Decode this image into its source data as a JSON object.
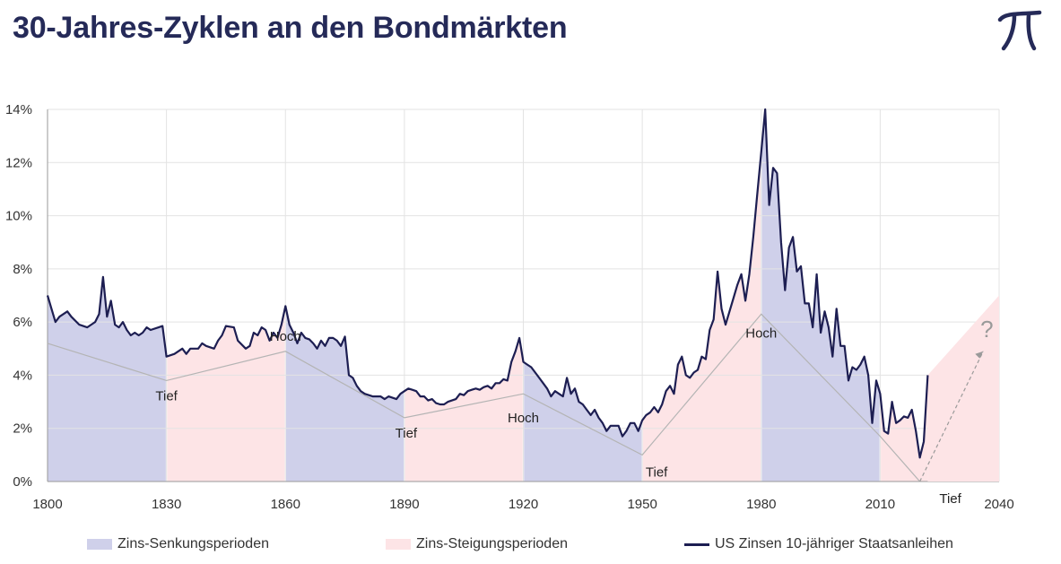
{
  "header": {
    "title": "30-Jahres-Zyklen an den Bondmärkten",
    "logo_icon": "pi-icon"
  },
  "colors": {
    "down_fill": "#cfd0ea",
    "up_fill": "#fde4e6",
    "line": "#1d1e52",
    "trend": "#b4b4b4",
    "grid": "#e3e3e3",
    "forecast_arrow": "#9a9a9a",
    "title": "#252a58"
  },
  "legend": {
    "down": "Zins-Senkungsperioden",
    "up": "Zins-Steigungsperioden",
    "line": "US Zinsen 10-jähriger Staatsanleihen"
  },
  "chart_data": {
    "type": "line",
    "title": "30-Jahres-Zyklen an den Bondmärkten",
    "xlim": [
      1800,
      2040
    ],
    "ylim": [
      0,
      14
    ],
    "x_ticks": [
      "1800",
      "1830",
      "1860",
      "1890",
      "1920",
      "1950",
      "1980",
      "2010",
      "2040"
    ],
    "y_ticks": [
      "0%",
      "2%",
      "4%",
      "6%",
      "8%",
      "10%",
      "12%",
      "14%"
    ],
    "grid": "both",
    "legend_position": "bottom",
    "series": [
      {
        "name": "US Zinsen 10-jähriger Staatsanleihen",
        "points": [
          [
            1800,
            7.0
          ],
          [
            1801,
            6.5
          ],
          [
            1802,
            6.0
          ],
          [
            1803,
            6.2
          ],
          [
            1805,
            6.4
          ],
          [
            1806,
            6.2
          ],
          [
            1808,
            5.9
          ],
          [
            1810,
            5.8
          ],
          [
            1812,
            6.0
          ],
          [
            1813,
            6.3
          ],
          [
            1814,
            7.7
          ],
          [
            1815,
            6.2
          ],
          [
            1816,
            6.8
          ],
          [
            1817,
            5.9
          ],
          [
            1818,
            5.8
          ],
          [
            1819,
            6.0
          ],
          [
            1820,
            5.7
          ],
          [
            1821,
            5.5
          ],
          [
            1822,
            5.6
          ],
          [
            1823,
            5.5
          ],
          [
            1824,
            5.6
          ],
          [
            1825,
            5.8
          ],
          [
            1826,
            5.7
          ],
          [
            1828,
            5.8
          ],
          [
            1829,
            5.85
          ],
          [
            1830,
            4.7
          ],
          [
            1832,
            4.8
          ],
          [
            1834,
            5.0
          ],
          [
            1835,
            4.8
          ],
          [
            1836,
            5.0
          ],
          [
            1838,
            5.0
          ],
          [
            1839,
            5.2
          ],
          [
            1840,
            5.1
          ],
          [
            1842,
            5.0
          ],
          [
            1843,
            5.3
          ],
          [
            1844,
            5.5
          ],
          [
            1845,
            5.85
          ],
          [
            1847,
            5.8
          ],
          [
            1848,
            5.3
          ],
          [
            1850,
            5.0
          ],
          [
            1851,
            5.1
          ],
          [
            1852,
            5.6
          ],
          [
            1853,
            5.5
          ],
          [
            1854,
            5.8
          ],
          [
            1855,
            5.7
          ],
          [
            1856,
            5.3
          ],
          [
            1857,
            5.6
          ],
          [
            1858,
            5.4
          ],
          [
            1859,
            5.9
          ],
          [
            1860,
            6.6
          ],
          [
            1861,
            5.9
          ],
          [
            1862,
            5.6
          ],
          [
            1863,
            5.2
          ],
          [
            1864,
            5.6
          ],
          [
            1865,
            5.4
          ],
          [
            1866,
            5.35
          ],
          [
            1867,
            5.2
          ],
          [
            1868,
            5.0
          ],
          [
            1869,
            5.3
          ],
          [
            1870,
            5.1
          ],
          [
            1871,
            5.4
          ],
          [
            1872,
            5.4
          ],
          [
            1873,
            5.3
          ],
          [
            1874,
            5.1
          ],
          [
            1875,
            5.45
          ],
          [
            1876,
            4.0
          ],
          [
            1877,
            3.9
          ],
          [
            1878,
            3.6
          ],
          [
            1879,
            3.4
          ],
          [
            1880,
            3.3
          ],
          [
            1882,
            3.2
          ],
          [
            1884,
            3.2
          ],
          [
            1885,
            3.1
          ],
          [
            1886,
            3.2
          ],
          [
            1888,
            3.1
          ],
          [
            1889,
            3.3
          ],
          [
            1890,
            3.4
          ],
          [
            1891,
            3.5
          ],
          [
            1892,
            3.45
          ],
          [
            1893,
            3.4
          ],
          [
            1894,
            3.2
          ],
          [
            1895,
            3.2
          ],
          [
            1896,
            3.05
          ],
          [
            1897,
            3.1
          ],
          [
            1898,
            2.95
          ],
          [
            1899,
            2.9
          ],
          [
            1900,
            2.9
          ],
          [
            1901,
            3.0
          ],
          [
            1902,
            3.05
          ],
          [
            1903,
            3.1
          ],
          [
            1904,
            3.3
          ],
          [
            1905,
            3.25
          ],
          [
            1906,
            3.4
          ],
          [
            1907,
            3.45
          ],
          [
            1908,
            3.5
          ],
          [
            1909,
            3.45
          ],
          [
            1910,
            3.55
          ],
          [
            1911,
            3.6
          ],
          [
            1912,
            3.5
          ],
          [
            1913,
            3.7
          ],
          [
            1914,
            3.7
          ],
          [
            1915,
            3.85
          ],
          [
            1916,
            3.8
          ],
          [
            1917,
            4.5
          ],
          [
            1918,
            4.9
          ],
          [
            1919,
            5.4
          ],
          [
            1920,
            4.5
          ],
          [
            1921,
            4.4
          ],
          [
            1922,
            4.3
          ],
          [
            1923,
            4.1
          ],
          [
            1924,
            3.9
          ],
          [
            1925,
            3.7
          ],
          [
            1926,
            3.5
          ],
          [
            1927,
            3.2
          ],
          [
            1928,
            3.4
          ],
          [
            1929,
            3.3
          ],
          [
            1930,
            3.2
          ],
          [
            1931,
            3.9
          ],
          [
            1932,
            3.3
          ],
          [
            1933,
            3.5
          ],
          [
            1934,
            3.0
          ],
          [
            1935,
            2.9
          ],
          [
            1936,
            2.7
          ],
          [
            1937,
            2.5
          ],
          [
            1938,
            2.7
          ],
          [
            1939,
            2.4
          ],
          [
            1940,
            2.2
          ],
          [
            1941,
            1.9
          ],
          [
            1942,
            2.1
          ],
          [
            1943,
            2.1
          ],
          [
            1944,
            2.1
          ],
          [
            1945,
            1.7
          ],
          [
            1946,
            1.9
          ],
          [
            1947,
            2.2
          ],
          [
            1948,
            2.2
          ],
          [
            1949,
            1.9
          ],
          [
            1950,
            2.3
          ],
          [
            1951,
            2.5
          ],
          [
            1952,
            2.6
          ],
          [
            1953,
            2.8
          ],
          [
            1954,
            2.6
          ],
          [
            1955,
            2.9
          ],
          [
            1956,
            3.4
          ],
          [
            1957,
            3.6
          ],
          [
            1958,
            3.3
          ],
          [
            1959,
            4.4
          ],
          [
            1960,
            4.7
          ],
          [
            1961,
            4.0
          ],
          [
            1962,
            3.9
          ],
          [
            1963,
            4.1
          ],
          [
            1964,
            4.2
          ],
          [
            1965,
            4.7
          ],
          [
            1966,
            4.6
          ],
          [
            1967,
            5.7
          ],
          [
            1968,
            6.1
          ],
          [
            1969,
            7.9
          ],
          [
            1970,
            6.5
          ],
          [
            1971,
            5.9
          ],
          [
            1972,
            6.4
          ],
          [
            1973,
            6.9
          ],
          [
            1974,
            7.4
          ],
          [
            1975,
            7.8
          ],
          [
            1976,
            6.8
          ],
          [
            1977,
            7.8
          ],
          [
            1978,
            9.2
          ],
          [
            1979,
            10.8
          ],
          [
            1980,
            12.4
          ],
          [
            1981,
            14.0
          ],
          [
            1982,
            10.4
          ],
          [
            1983,
            11.8
          ],
          [
            1984,
            11.6
          ],
          [
            1985,
            9.0
          ],
          [
            1986,
            7.2
          ],
          [
            1987,
            8.8
          ],
          [
            1988,
            9.2
          ],
          [
            1989,
            7.9
          ],
          [
            1990,
            8.1
          ],
          [
            1991,
            6.7
          ],
          [
            1992,
            6.7
          ],
          [
            1993,
            5.8
          ],
          [
            1994,
            7.8
          ],
          [
            1995,
            5.6
          ],
          [
            1996,
            6.4
          ],
          [
            1997,
            5.8
          ],
          [
            1998,
            4.7
          ],
          [
            1999,
            6.5
          ],
          [
            2000,
            5.1
          ],
          [
            2001,
            5.1
          ],
          [
            2002,
            3.8
          ],
          [
            2003,
            4.3
          ],
          [
            2004,
            4.2
          ],
          [
            2005,
            4.4
          ],
          [
            2006,
            4.7
          ],
          [
            2007,
            4.0
          ],
          [
            2008,
            2.2
          ],
          [
            2009,
            3.8
          ],
          [
            2010,
            3.3
          ],
          [
            2011,
            1.9
          ],
          [
            2012,
            1.8
          ],
          [
            2013,
            3.0
          ],
          [
            2014,
            2.2
          ],
          [
            2015,
            2.3
          ],
          [
            2016,
            2.45
          ],
          [
            2017,
            2.4
          ],
          [
            2018,
            2.7
          ],
          [
            2019,
            1.9
          ],
          [
            2020,
            0.9
          ],
          [
            2021,
            1.5
          ],
          [
            2022,
            4.0
          ]
        ]
      }
    ],
    "periods": [
      {
        "type": "down",
        "start": 1800,
        "end": 1830
      },
      {
        "type": "up",
        "start": 1830,
        "end": 1860
      },
      {
        "type": "down",
        "start": 1860,
        "end": 1890
      },
      {
        "type": "up",
        "start": 1890,
        "end": 1920
      },
      {
        "type": "down",
        "start": 1920,
        "end": 1950
      },
      {
        "type": "up",
        "start": 1950,
        "end": 1980
      },
      {
        "type": "down",
        "start": 1980,
        "end": 2010
      },
      {
        "type": "up",
        "start": 2010,
        "end": 2040
      }
    ],
    "trend_points": [
      [
        1800,
        5.2
      ],
      [
        1830,
        3.8
      ],
      [
        1860,
        4.9
      ],
      [
        1890,
        2.4
      ],
      [
        1920,
        3.3
      ],
      [
        1950,
        1.0
      ],
      [
        1980,
        6.3
      ],
      [
        2010,
        1.7
      ],
      [
        2020,
        0.0
      ]
    ],
    "forecast": {
      "from": [
        2022,
        0.0
      ],
      "to": [
        2040,
        7.0
      ],
      "arrow_from": [
        2026,
        1.2
      ],
      "arrow_to": [
        2036,
        4.9
      ],
      "label": "?"
    },
    "annotations": [
      {
        "text": "Tief",
        "x": 1830,
        "y": 3.8
      },
      {
        "text": "Hoch",
        "x": 1860,
        "y": 4.9
      },
      {
        "text": "Tief",
        "x": 1890,
        "y": 2.4
      },
      {
        "text": "Hoch",
        "x": 1920,
        "y": 3.3
      },
      {
        "text": "Tief",
        "x": 1950,
        "y": 1.0
      },
      {
        "text": "Hoch",
        "x": 1980,
        "y": 6.3
      },
      {
        "text": "Tief",
        "x": 2020,
        "y": 0.0
      }
    ]
  }
}
